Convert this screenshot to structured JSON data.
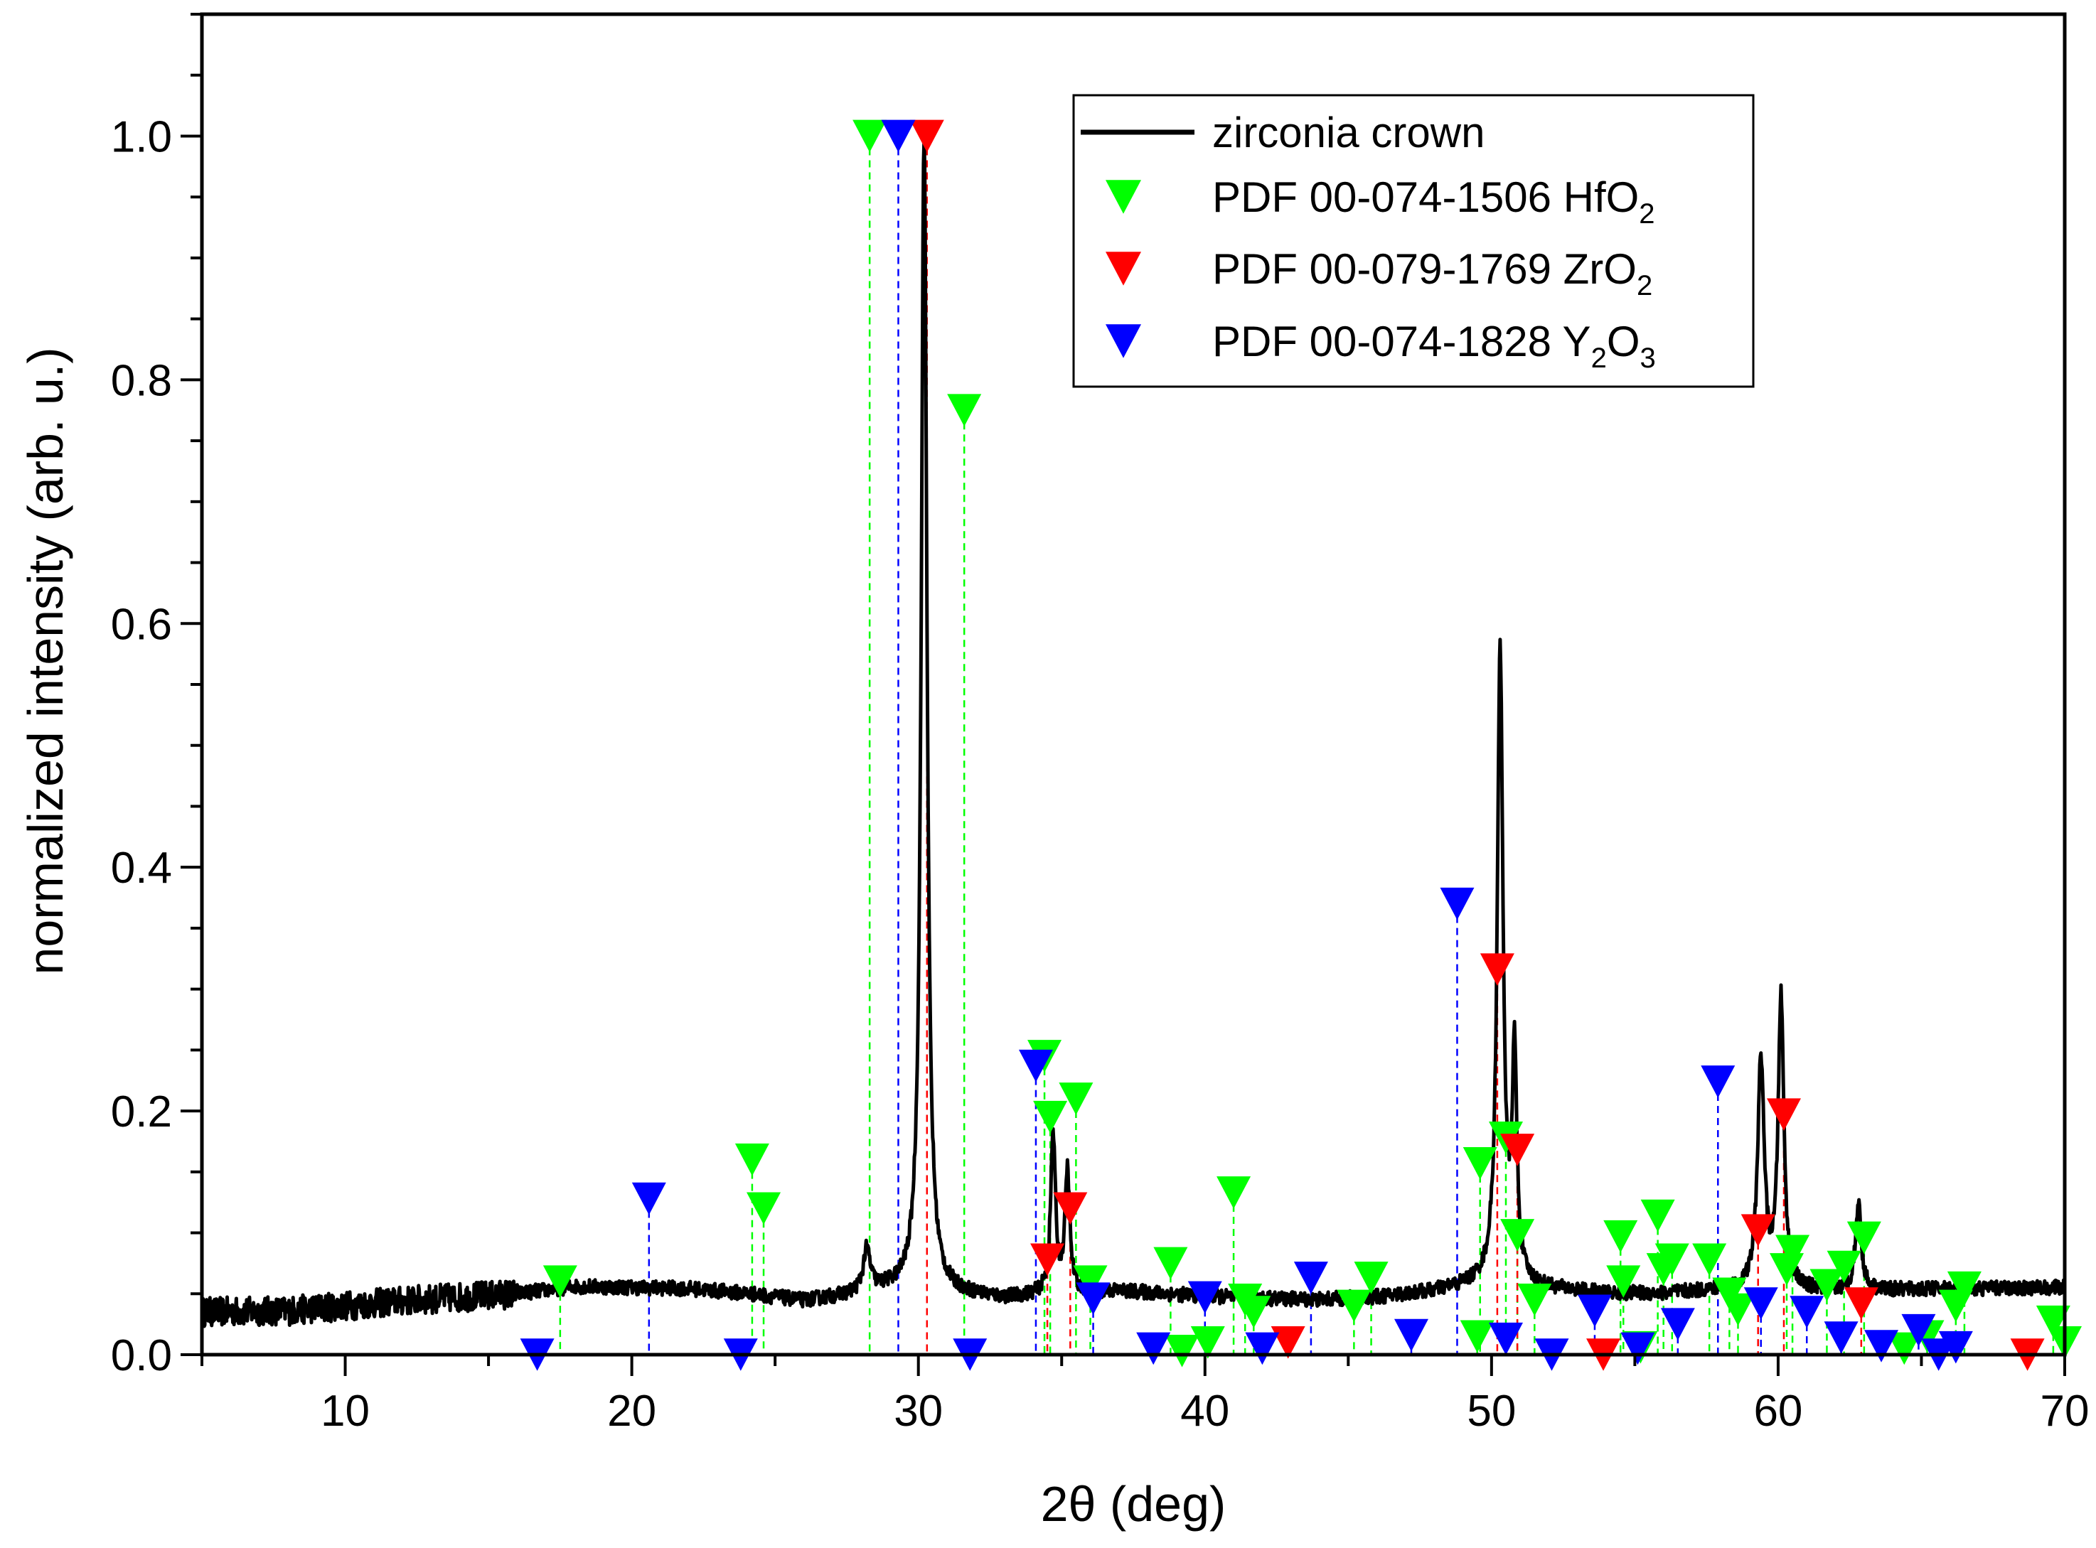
{
  "chart_data": {
    "type": "line",
    "title": "",
    "xlabel": "2θ (deg)",
    "ylabel": "normalized intensity (arb. u.)",
    "xlim": [
      5,
      70
    ],
    "ylim": [
      0,
      1.1
    ],
    "xticks": [
      "10",
      "20",
      "30",
      "40",
      "50",
      "60",
      "70"
    ],
    "yticks": [
      "0.0",
      "0.2",
      "0.4",
      "0.6",
      "0.8",
      "1.0"
    ],
    "grid": false,
    "legend_position": "top-right",
    "series": [
      {
        "name": "zirconia crown",
        "kind": "line",
        "color": "#000000",
        "baseline": [
          [
            5,
            0.035
          ],
          [
            8,
            0.036
          ],
          [
            12,
            0.044
          ],
          [
            16,
            0.05
          ],
          [
            18,
            0.056
          ],
          [
            20,
            0.055
          ],
          [
            22,
            0.054
          ],
          [
            24,
            0.05
          ],
          [
            26,
            0.044
          ],
          [
            27.5,
            0.048
          ],
          [
            29,
            0.053
          ],
          [
            31,
            0.05
          ],
          [
            33,
            0.046
          ],
          [
            35,
            0.05
          ],
          [
            37,
            0.052
          ],
          [
            40,
            0.048
          ],
          [
            42,
            0.046
          ],
          [
            44,
            0.045
          ],
          [
            46,
            0.047
          ],
          [
            48,
            0.052
          ],
          [
            50,
            0.06
          ],
          [
            52,
            0.054
          ],
          [
            54,
            0.05
          ],
          [
            56,
            0.05
          ],
          [
            58,
            0.053
          ],
          [
            62,
            0.052
          ],
          [
            66,
            0.054
          ],
          [
            70,
            0.055
          ]
        ],
        "peaks": [
          {
            "x": 28.2,
            "height": 0.085,
            "width": 0.15
          },
          {
            "x": 30.2,
            "height": 1.0,
            "width": 0.12
          },
          {
            "x": 34.7,
            "height": 0.18,
            "width": 0.1
          },
          {
            "x": 35.2,
            "height": 0.15,
            "width": 0.1
          },
          {
            "x": 50.3,
            "height": 0.575,
            "width": 0.12
          },
          {
            "x": 50.8,
            "height": 0.24,
            "width": 0.1
          },
          {
            "x": 59.4,
            "height": 0.24,
            "width": 0.14
          },
          {
            "x": 60.1,
            "height": 0.29,
            "width": 0.12
          },
          {
            "x": 62.8,
            "height": 0.125,
            "width": 0.12
          }
        ]
      },
      {
        "name": "PDF 00-074-1506 HfO",
        "subscripts": [
          "2",
          ""
        ],
        "kind": "markers",
        "color": "#00ff00",
        "points": [
          [
            17.5,
            0.06
          ],
          [
            24.2,
            0.16
          ],
          [
            24.6,
            0.12
          ],
          [
            28.3,
            1.0
          ],
          [
            31.6,
            0.775
          ],
          [
            34.4,
            0.245
          ],
          [
            34.6,
            0.195
          ],
          [
            35.5,
            0.21
          ],
          [
            36.0,
            0.06
          ],
          [
            38.8,
            0.075
          ],
          [
            39.2,
            0.003
          ],
          [
            40.1,
            0.01
          ],
          [
            41.0,
            0.133
          ],
          [
            41.4,
            0.045
          ],
          [
            41.7,
            0.035
          ],
          [
            45.2,
            0.04
          ],
          [
            45.8,
            0.063
          ],
          [
            49.5,
            0.015
          ],
          [
            49.6,
            0.157
          ],
          [
            50.5,
            0.178
          ],
          [
            50.9,
            0.098
          ],
          [
            51.5,
            0.045
          ],
          [
            54.5,
            0.097
          ],
          [
            54.6,
            0.06
          ],
          [
            55.2,
            0.006
          ],
          [
            55.8,
            0.114
          ],
          [
            56.0,
            0.07
          ],
          [
            56.3,
            0.078
          ],
          [
            57.6,
            0.078
          ],
          [
            58.3,
            0.05
          ],
          [
            58.6,
            0.037
          ],
          [
            60.3,
            0.07
          ],
          [
            60.5,
            0.085
          ],
          [
            61.7,
            0.057
          ],
          [
            62.3,
            0.072
          ],
          [
            63.0,
            0.096
          ],
          [
            64.4,
            0.005
          ],
          [
            65.2,
            0.015
          ],
          [
            66.2,
            0.04
          ],
          [
            66.5,
            0.055
          ],
          [
            69.6,
            0.027
          ],
          [
            70.0,
            0.01
          ]
        ]
      },
      {
        "name": "PDF 00-079-1769 ZrO",
        "subscripts": [
          "2",
          ""
        ],
        "kind": "markers",
        "color": "#ff0000",
        "points": [
          [
            30.3,
            1.0
          ],
          [
            34.5,
            0.078
          ],
          [
            35.3,
            0.12
          ],
          [
            42.9,
            0.01
          ],
          [
            50.2,
            0.316
          ],
          [
            50.9,
            0.168
          ],
          [
            53.9,
            0.0
          ],
          [
            59.3,
            0.102
          ],
          [
            60.2,
            0.197
          ],
          [
            62.9,
            0.042
          ],
          [
            68.7,
            0.0
          ]
        ]
      },
      {
        "name": "PDF 00-074-1828 Y",
        "subscripts": [
          "2",
          "O",
          "3"
        ],
        "kind": "markers",
        "color": "#0000ff",
        "points": [
          [
            16.7,
            0.0
          ],
          [
            20.6,
            0.128
          ],
          [
            23.8,
            0.0
          ],
          [
            29.3,
            1.0
          ],
          [
            31.8,
            0.0
          ],
          [
            34.1,
            0.237
          ],
          [
            36.1,
            0.046
          ],
          [
            38.2,
            0.005
          ],
          [
            40.0,
            0.047
          ],
          [
            42.0,
            0.005
          ],
          [
            43.7,
            0.063
          ],
          [
            47.2,
            0.016
          ],
          [
            48.8,
            0.37
          ],
          [
            50.5,
            0.013
          ],
          [
            52.1,
            0.0
          ],
          [
            53.6,
            0.036
          ],
          [
            55.1,
            0.005
          ],
          [
            56.5,
            0.025
          ],
          [
            57.9,
            0.224
          ],
          [
            59.4,
            0.042
          ],
          [
            61.0,
            0.035
          ],
          [
            62.2,
            0.014
          ],
          [
            63.6,
            0.007
          ],
          [
            64.9,
            0.02
          ],
          [
            65.6,
            0.0
          ],
          [
            66.2,
            0.006
          ]
        ]
      }
    ]
  }
}
